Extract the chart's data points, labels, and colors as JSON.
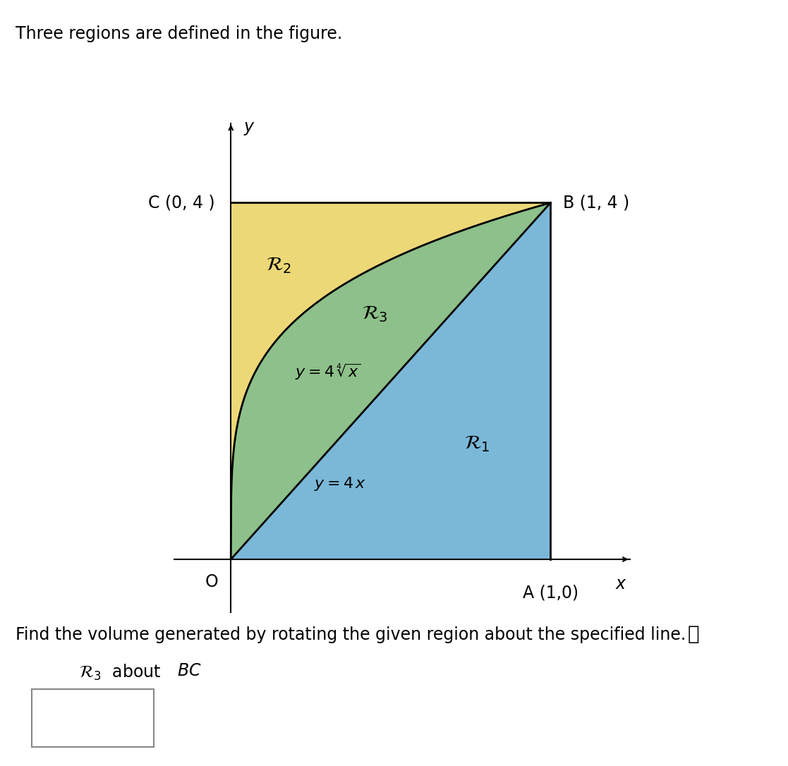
{
  "title_text": "Three regions are defined in the figure.",
  "title_fontsize": 17,
  "question_text": "Find the volume generated by rotating the given region about the specified line.",
  "question_fontsize": 17,
  "region_label_text_italic": "ℛ",
  "region_subscript": "3",
  "region_about_text": " about ",
  "region_BC_text": "BC",
  "region_fontsize": 17,
  "color_R1": "#7BB8D8",
  "color_R2": "#EDD878",
  "color_R3": "#8DC08A",
  "color_black": "#000000",
  "plot_xlim": [
    -0.18,
    1.25
  ],
  "plot_ylim": [
    -0.6,
    4.9
  ],
  "label_C": "C (0, 4 )",
  "label_B": "B (1, 4 )",
  "label_A": "A (1,0)",
  "label_O": "O",
  "label_x": "x",
  "label_y": "y",
  "label_R1": "$\\mathcal{R}_1$",
  "label_R2": "$\\mathcal{R}_2$",
  "label_R3": "$\\mathcal{R}_3$",
  "label_curve": "$y = 4\\,\\sqrt[4]{x}$",
  "label_line": "$y = 4\\,x$",
  "fontsize_point_labels": 17,
  "fontsize_region": 20,
  "fontsize_eq": 16,
  "background_color": "#ffffff",
  "axes_linewidth": 1.5,
  "curve_linewidth": 2.0,
  "box_color": "#888888"
}
